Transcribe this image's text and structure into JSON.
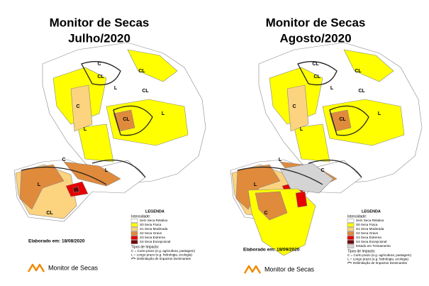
{
  "panels": [
    {
      "title": "Monitor de Secas",
      "subtitle": "Julho/2020",
      "legend": {
        "title": "LEGENDA",
        "intensity_heading": "Intensidade:",
        "items": [
          {
            "label": "Sem Seca Relativa",
            "color": "#ffffff"
          },
          {
            "label": "S0 Seca Fraca",
            "color": "#ffff00"
          },
          {
            "label": "S1 Seca Moderada",
            "color": "#fcd37f"
          },
          {
            "label": "S2 Seca Grave",
            "color": "#e08a3c"
          },
          {
            "label": "S3 Seca Extrema",
            "color": "#e60000"
          },
          {
            "label": "S4 Seca Excepcional",
            "color": "#730000"
          }
        ],
        "impact_heading": "Tipos de Impacto:",
        "impact_items": [
          "C = Curto prazo (e.g. agricultura, pastagem)",
          "L = Longo prazo (e.g. hidrologia, ecologia)",
          "Delimitação de Impactos Dominantes"
        ]
      },
      "elaborated": "Elaborado em: 18/08/2020",
      "logo": "Monitor de Secas",
      "map_labels": [
        "C",
        "CL",
        "L",
        "CL",
        "CL",
        "L",
        "C",
        "L",
        "CL",
        "L",
        "L",
        "CL",
        "C"
      ]
    },
    {
      "title": "Monitor de Secas",
      "subtitle": "Agosto/2020",
      "legend": {
        "title": "LEGENDA",
        "intensity_heading": "Intensidade:",
        "items": [
          {
            "label": "Sem Seca Relativa",
            "color": "#ffffff"
          },
          {
            "label": "S0 Seca Fraca",
            "color": "#ffff00"
          },
          {
            "label": "S1 Seca Moderada",
            "color": "#fcd37f"
          },
          {
            "label": "S2 Seca Grave",
            "color": "#e08a3c"
          },
          {
            "label": "S3 Seca Extrema",
            "color": "#e60000"
          },
          {
            "label": "S4 Seca Excepcional",
            "color": "#730000"
          },
          {
            "label": "Estado em Treinamento",
            "color": "#d4d4d4"
          }
        ],
        "impact_heading": "Tipos de Impacto:",
        "impact_items": [
          "C = Curto prazo (e.g. agricultura, pastagem)",
          "L = Longo prazo (e.g. hidrologia, ecologia)",
          "Delimitação de Impactos Dominantes"
        ]
      },
      "elaborated": "Elaborado em: 18/09/2020",
      "logo": "Monitor de Secas",
      "map_labels": [
        "CL",
        "CL",
        "L",
        "CL",
        "CL",
        "L",
        "L",
        "L",
        "C",
        "C",
        "L",
        "CL",
        "C"
      ]
    }
  ]
}
